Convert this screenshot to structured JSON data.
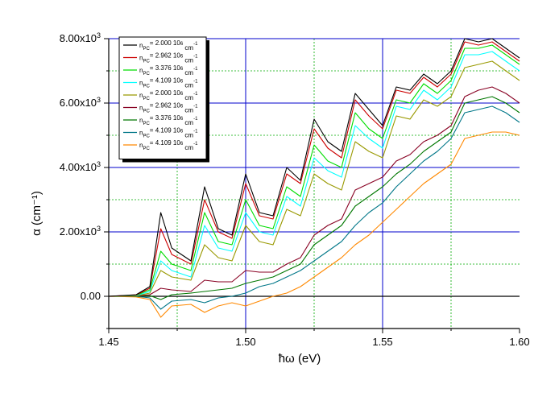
{
  "chart_data": {
    "type": "line",
    "xlabel": "ħω (eV)",
    "ylabel": "α (cm⁻¹)",
    "xlim": [
      1.45,
      1.6
    ],
    "ylim": [
      -1000,
      8000
    ],
    "x_ticks": [
      {
        "value": 1.45,
        "label": "1.45"
      },
      {
        "value": 1.5,
        "label": "1.50"
      },
      {
        "value": 1.55,
        "label": "1.55"
      },
      {
        "value": 1.6,
        "label": "1.60"
      }
    ],
    "y_ticks": [
      {
        "value": 0,
        "label": "0.00"
      },
      {
        "value": 2000,
        "label": "2.00x10³"
      },
      {
        "value": 4000,
        "label": "4.00x10³"
      },
      {
        "value": 6000,
        "label": "6.00x10³"
      },
      {
        "value": 8000,
        "label": "8.00x10³"
      }
    ],
    "grid": {
      "major_x": [
        1.5,
        1.55
      ],
      "major_y": [
        2000,
        4000,
        6000,
        8000
      ],
      "minor_x": [
        1.475,
        1.525,
        1.575
      ],
      "minor_y": [
        1000,
        3000,
        5000,
        7000
      ],
      "major_color": "#0000cc",
      "minor_color": "#00aa00"
    },
    "legend_position": "top-left",
    "x": [
      1.45,
      1.46,
      1.465,
      1.469,
      1.473,
      1.48,
      1.485,
      1.49,
      1.495,
      1.5,
      1.505,
      1.51,
      1.515,
      1.52,
      1.525,
      1.53,
      1.535,
      1.54,
      1.545,
      1.55,
      1.555,
      1.56,
      1.565,
      1.57,
      1.575,
      1.58,
      1.585,
      1.59,
      1.595,
      1.6
    ],
    "series": [
      {
        "name": "n_PC = 2.000 10⁶ cm⁻¹",
        "color": "#000000",
        "values": [
          0,
          50,
          300,
          2600,
          1500,
          1100,
          3400,
          2100,
          1900,
          3800,
          2600,
          2500,
          4000,
          3600,
          5500,
          4800,
          4500,
          6300,
          5800,
          5300,
          6500,
          6400,
          6900,
          6600,
          7000,
          8000,
          7900,
          8000,
          7700,
          7400
        ]
      },
      {
        "name": "n_PC = 2.962 10⁶ cm⁻¹",
        "color": "#cc0000",
        "values": [
          0,
          40,
          250,
          2100,
          1300,
          1000,
          3000,
          2000,
          1800,
          3500,
          2500,
          2400,
          3800,
          3500,
          5200,
          4600,
          4300,
          6100,
          5600,
          5200,
          6400,
          6300,
          6800,
          6500,
          6900,
          7900,
          7800,
          7900,
          7600,
          7300
        ]
      },
      {
        "name": "n_PC = 3.376 10⁶ cm⁻¹",
        "color": "#00dd00",
        "values": [
          0,
          30,
          200,
          1400,
          1000,
          800,
          2600,
          1700,
          1600,
          3000,
          2200,
          2100,
          3400,
          3100,
          4700,
          4200,
          4000,
          5700,
          5200,
          4900,
          6100,
          6000,
          6600,
          6300,
          6700,
          7700,
          7700,
          7800,
          7500,
          7200
        ]
      },
      {
        "name": "n_PC = 4.109 10⁶ cm⁻¹",
        "color": "#00ffff",
        "values": [
          0,
          20,
          150,
          1100,
          800,
          600,
          2200,
          1500,
          1400,
          2600,
          2000,
          1900,
          3100,
          2800,
          4300,
          3900,
          3700,
          5300,
          4900,
          4600,
          5900,
          5800,
          6400,
          6100,
          6500,
          7500,
          7500,
          7600,
          7300,
          7000
        ]
      },
      {
        "name": "n_PC = 2.000 10⁶ cm⁻¹",
        "color": "#999900",
        "values": [
          0,
          15,
          100,
          800,
          600,
          500,
          1600,
          1200,
          1100,
          2200,
          1700,
          1600,
          2700,
          2500,
          3800,
          3500,
          3300,
          4800,
          4500,
          4300,
          5600,
          5500,
          6100,
          5900,
          6200,
          7100,
          7200,
          7300,
          7000,
          6700
        ]
      },
      {
        "name": "n_PC = 2.962 10⁶ cm⁻¹",
        "color": "#880022",
        "values": [
          0,
          10,
          50,
          250,
          200,
          150,
          500,
          450,
          450,
          800,
          750,
          750,
          1000,
          1200,
          1900,
          2200,
          2400,
          3300,
          3500,
          3700,
          4200,
          4400,
          4800,
          5000,
          5300,
          6200,
          6400,
          6500,
          6300,
          6000
        ]
      },
      {
        "name": "n_PC = 3.376 10⁶ cm⁻¹",
        "color": "#007700",
        "values": [
          0,
          5,
          20,
          -100,
          50,
          100,
          150,
          200,
          250,
          400,
          500,
          600,
          800,
          1000,
          1600,
          1900,
          2200,
          2800,
          3100,
          3400,
          3800,
          4100,
          4500,
          4800,
          5100,
          6000,
          6100,
          6200,
          6000,
          5700
        ]
      },
      {
        "name": "n_PC = 4.109 10⁶ cm⁻¹",
        "color": "#007788",
        "values": [
          0,
          0,
          -50,
          -400,
          -150,
          -100,
          -200,
          -50,
          0,
          100,
          300,
          400,
          600,
          800,
          1100,
          1400,
          1700,
          2200,
          2600,
          2900,
          3400,
          3800,
          4200,
          4500,
          4900,
          5700,
          5800,
          5900,
          5700,
          5400
        ]
      },
      {
        "name": "n_PC = 4.109 10⁶ cm⁻¹",
        "color": "#ff8800",
        "values": [
          0,
          -20,
          -100,
          -650,
          -300,
          -250,
          -500,
          -300,
          -200,
          -300,
          -150,
          0,
          100,
          300,
          600,
          900,
          1200,
          1600,
          1900,
          2300,
          2700,
          3100,
          3500,
          3800,
          4100,
          4900,
          5000,
          5100,
          5100,
          5000
        ]
      }
    ],
    "legend_labels": [
      {
        "prefix": "n",
        "sub": "PC",
        "text": "= 2.000 10",
        "exp": "6",
        "unit": " cm",
        "unit_exp": "-1"
      },
      {
        "prefix": "n",
        "sub": "PC",
        "text": "= 2.962 10",
        "exp": "6",
        "unit": " cm",
        "unit_exp": "-1"
      },
      {
        "prefix": "n",
        "sub": "PC",
        "text": "= 3.376 10",
        "exp": "6",
        "unit": " cm",
        "unit_exp": "-1"
      },
      {
        "prefix": "n",
        "sub": "PC",
        "text": "= 4.109 10",
        "exp": "6",
        "unit": " cm",
        "unit_exp": "-1"
      },
      {
        "prefix": "n",
        "sub": "PC",
        "text": "= 2.000 10",
        "exp": "6",
        "unit": " cm",
        "unit_exp": "-1"
      },
      {
        "prefix": "n",
        "sub": "PC",
        "text": "= 2.962 10",
        "exp": "6",
        "unit": " cm",
        "unit_exp": "-1"
      },
      {
        "prefix": "n",
        "sub": "PC",
        "text": "= 3.376 10",
        "exp": "6",
        "unit": " cm",
        "unit_exp": "-1"
      },
      {
        "prefix": "n",
        "sub": "PC",
        "text": "= 4.109 10",
        "exp": "6",
        "unit": " cm",
        "unit_exp": "-1"
      },
      {
        "prefix": "n",
        "sub": "PC",
        "text": "= 4.109 10",
        "exp": "6",
        "unit": " cm",
        "unit_exp": "-1"
      }
    ]
  }
}
